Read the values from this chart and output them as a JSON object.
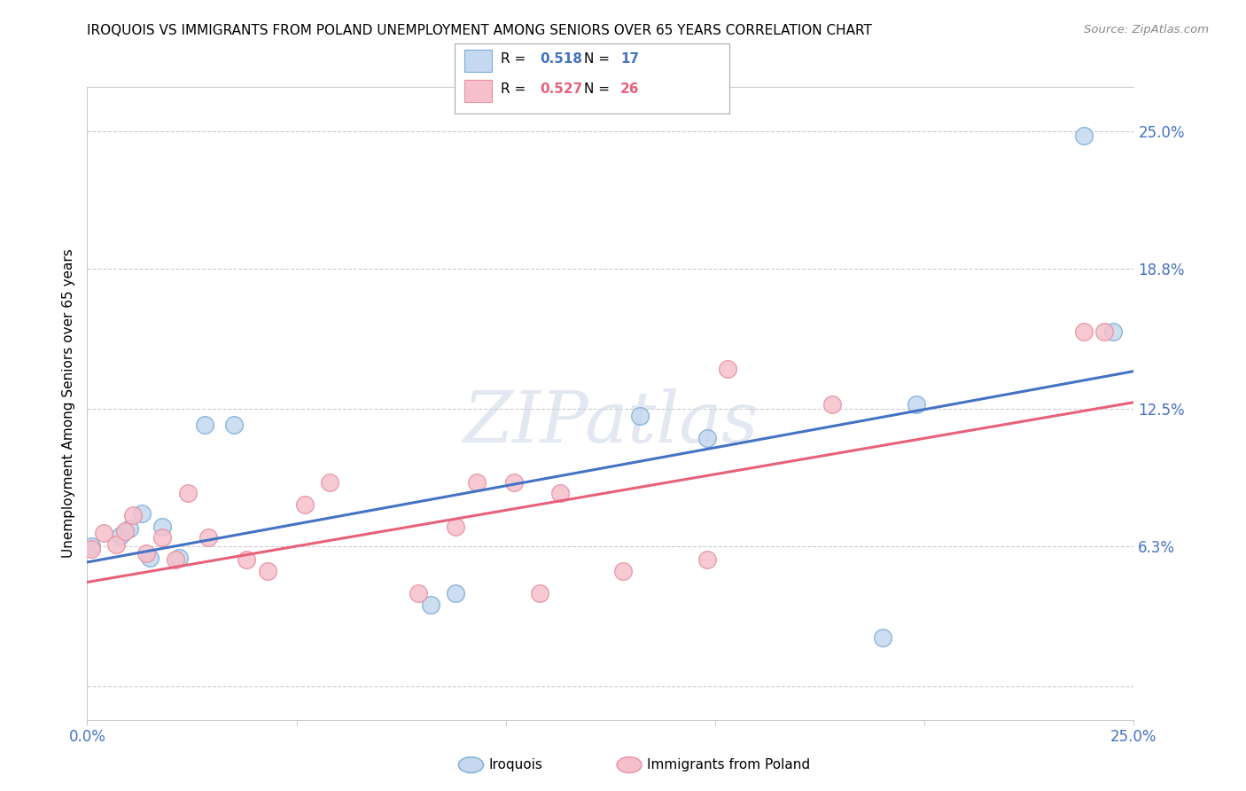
{
  "title": "IROQUOIS VS IMMIGRANTS FROM POLAND UNEMPLOYMENT AMONG SENIORS OVER 65 YEARS CORRELATION CHART",
  "source": "Source: ZipAtlas.com",
  "ylabel": "Unemployment Among Seniors over 65 years",
  "xlim": [
    0.0,
    0.25
  ],
  "ylim": [
    -0.015,
    0.27
  ],
  "ytick_positions": [
    0.0,
    0.063,
    0.125,
    0.188,
    0.25
  ],
  "ytick_labels": [
    "",
    "6.3%",
    "12.5%",
    "18.8%",
    "25.0%"
  ],
  "line_color1": "#4472c4",
  "line_color2": "#e8607a",
  "scatter_fill1": "#c5d8f0",
  "scatter_fill2": "#f5c0cc",
  "scatter_edge1": "#7bacd4",
  "scatter_edge2": "#e890a0",
  "watermark": "ZIPatlas",
  "legend_R1": "0.518",
  "legend_N1": "17",
  "legend_R2": "0.527",
  "legend_N2": "26",
  "iroquois_x": [
    0.001,
    0.008,
    0.01,
    0.013,
    0.015,
    0.018,
    0.022,
    0.028,
    0.035,
    0.082,
    0.088,
    0.132,
    0.148,
    0.19,
    0.198,
    0.238,
    0.245
  ],
  "iroquois_y": [
    0.063,
    0.068,
    0.071,
    0.078,
    0.058,
    0.072,
    0.058,
    0.118,
    0.118,
    0.037,
    0.042,
    0.122,
    0.112,
    0.022,
    0.127,
    0.248,
    0.16
  ],
  "poland_x": [
    0.001,
    0.004,
    0.007,
    0.009,
    0.011,
    0.014,
    0.018,
    0.021,
    0.024,
    0.029,
    0.038,
    0.043,
    0.052,
    0.058,
    0.079,
    0.088,
    0.093,
    0.102,
    0.108,
    0.113,
    0.128,
    0.148,
    0.153,
    0.178,
    0.238,
    0.243
  ],
  "poland_y": [
    0.062,
    0.069,
    0.064,
    0.07,
    0.077,
    0.06,
    0.067,
    0.057,
    0.087,
    0.067,
    0.057,
    0.052,
    0.082,
    0.092,
    0.042,
    0.072,
    0.092,
    0.092,
    0.042,
    0.087,
    0.052,
    0.057,
    0.143,
    0.127,
    0.16,
    0.16
  ],
  "iroquois_line_x": [
    0.0,
    0.25
  ],
  "iroquois_line_y": [
    0.056,
    0.142
  ],
  "poland_line_x": [
    0.0,
    0.25
  ],
  "poland_line_y": [
    0.047,
    0.128
  ]
}
